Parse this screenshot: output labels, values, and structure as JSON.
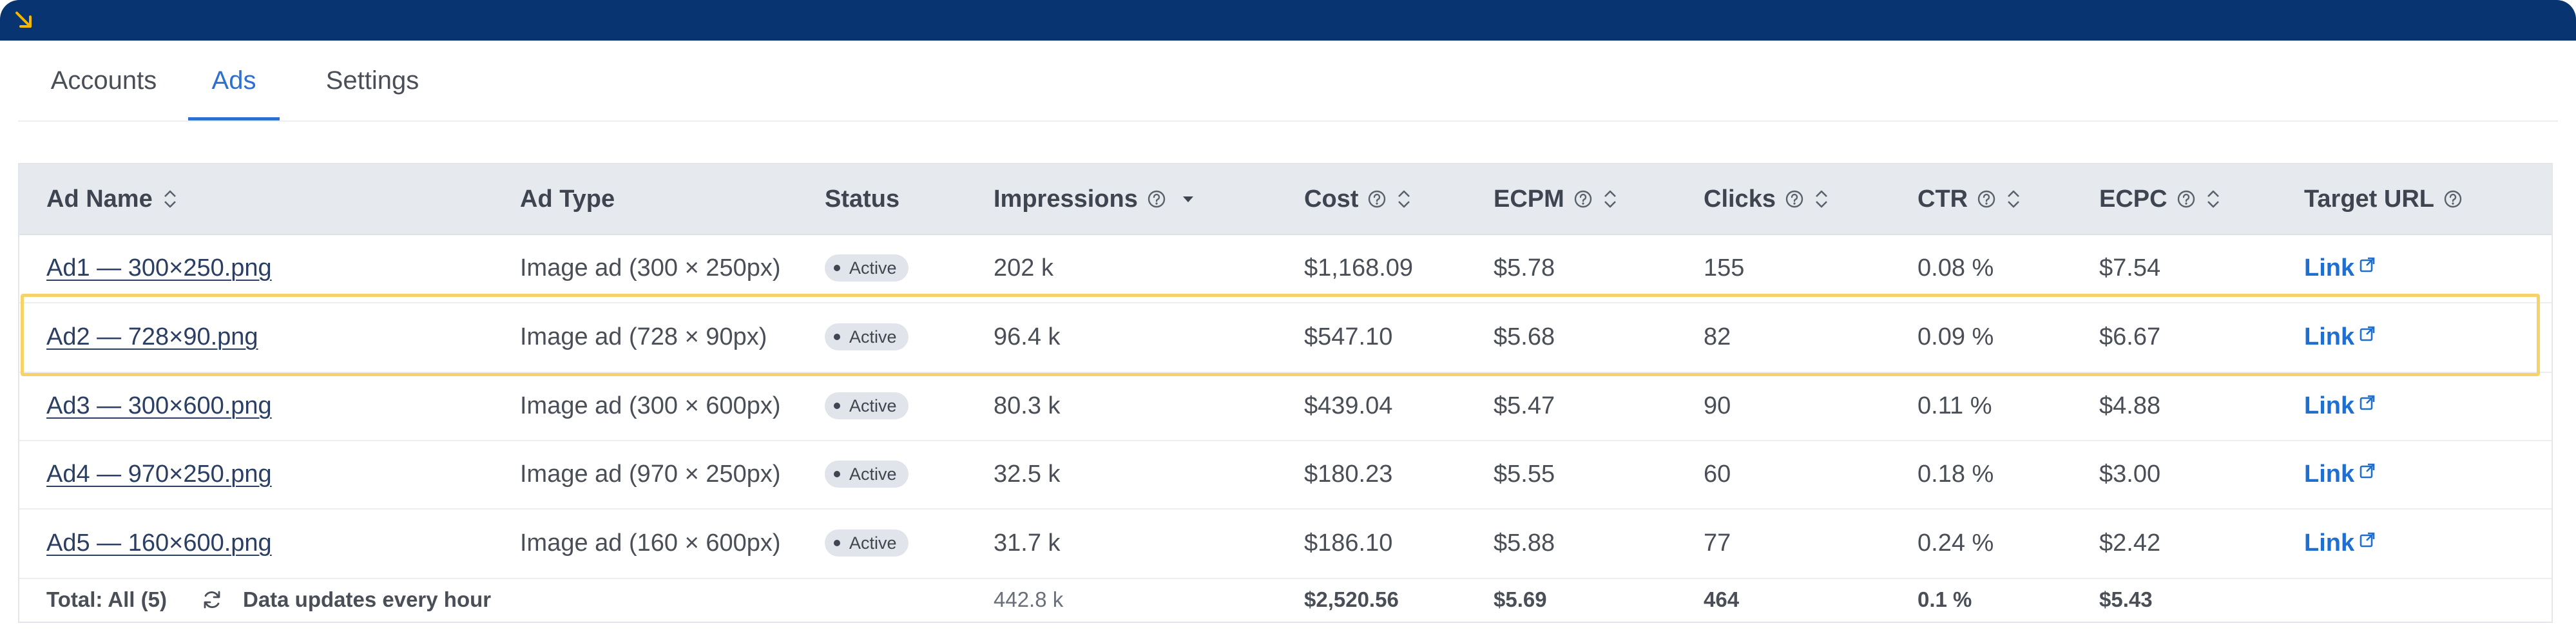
{
  "tabs": [
    {
      "label": "Accounts",
      "active": false
    },
    {
      "label": "Ads",
      "active": true
    },
    {
      "label": "Settings",
      "active": false
    }
  ],
  "table": {
    "columns": [
      "Ad Name",
      "Ad Type",
      "Status",
      "Impressions",
      "Cost",
      "ECPM",
      "Clicks",
      "CTR",
      "ECPC",
      "Target URL"
    ],
    "sort": {
      "column": "Impressions",
      "direction": "desc"
    },
    "rows": [
      {
        "name": "Ad1 — 300×250.png",
        "type": "Image ad (300 × 250px)",
        "status": "Active",
        "impressions": "202 k",
        "cost": "$1,168.09",
        "ecpm": "$5.78",
        "clicks": "155",
        "ctr": "0.08 %",
        "ecpc": "$7.54",
        "target": "Link"
      },
      {
        "name": "Ad2 — 728×90.png",
        "type": "Image ad (728 × 90px)",
        "status": "Active",
        "impressions": "96.4 k",
        "cost": "$547.10",
        "ecpm": "$5.68",
        "clicks": "82",
        "ctr": "0.09 %",
        "ecpc": "$6.67",
        "target": "Link",
        "highlighted": true
      },
      {
        "name": "Ad3 — 300×600.png",
        "type": "Image ad (300 × 600px)",
        "status": "Active",
        "impressions": "80.3 k",
        "cost": "$439.04",
        "ecpm": "$5.47",
        "clicks": "90",
        "ctr": "0.11 %",
        "ecpc": "$4.88",
        "target": "Link"
      },
      {
        "name": "Ad4 — 970×250.png",
        "type": "Image ad (970 × 250px)",
        "status": "Active",
        "impressions": "32.5 k",
        "cost": "$180.23",
        "ecpm": "$5.55",
        "clicks": "60",
        "ctr": "0.18 %",
        "ecpc": "$3.00",
        "target": "Link"
      },
      {
        "name": "Ad5 — 160×600.png",
        "type": "Image ad (160 × 600px)",
        "status": "Active",
        "impressions": "31.7 k",
        "cost": "$186.10",
        "ecpm": "$5.88",
        "clicks": "77",
        "ctr": "0.24 %",
        "ecpc": "$2.42",
        "target": "Link"
      }
    ],
    "totals": {
      "label": "Total: All (5)",
      "update_note": "Data updates every hour",
      "impressions": "442.8 k",
      "cost": "$2,520.56",
      "ecpm": "$5.69",
      "clicks": "464",
      "ctr": "0.1 %",
      "ecpc": "$5.43"
    }
  },
  "colors": {
    "topbar": "#083572",
    "accent": "#2f6fd1",
    "highlight": "#f6d36a",
    "corner_icon": "#f2b705"
  },
  "icons": {
    "corner": "arrow-down-right-icon",
    "help": "question-circle-icon",
    "sort": "sort-icon",
    "sort_desc": "caret-down-icon",
    "external": "external-link-icon",
    "refresh": "refresh-icon"
  }
}
